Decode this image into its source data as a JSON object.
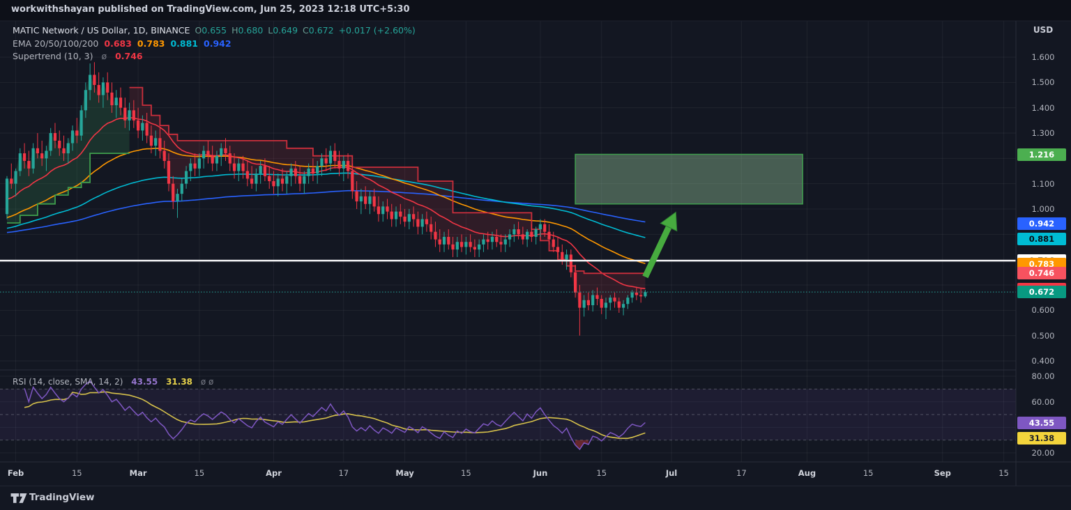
{
  "watermark": "workwithshayan published on TradingView.com, Jun 25, 2023 12:18 UTC+5:30",
  "header": {
    "symbol": "MATIC Network / US Dollar, 1D, BINANCE",
    "ohlc": [
      [
        "O",
        "0.655"
      ],
      [
        "H",
        "0.680"
      ],
      [
        "L",
        "0.649"
      ],
      [
        "C",
        "0.672"
      ]
    ],
    "change": "+0.017 (+2.60%)",
    "ema_label": "EMA 20/50/100/200",
    "ema_values": [
      {
        "text": "0.683",
        "color": "#f23645"
      },
      {
        "text": "0.783",
        "color": "#ff9800"
      },
      {
        "text": "0.881",
        "color": "#00bcd4"
      },
      {
        "text": "0.942",
        "color": "#2962ff"
      }
    ],
    "supertrend_label": "Supertrend (10, 3)",
    "supertrend_marker": "ø",
    "supertrend_value": "0.746"
  },
  "rsi_header": {
    "label": "RSI (14, close, SMA, 14, 2)",
    "rsi_value": "43.55",
    "ma_value": "31.38",
    "marker": "ø  ø"
  },
  "price_axis": {
    "unit": "USD",
    "ticks": [
      {
        "label": "1.600",
        "price": 1.6
      },
      {
        "label": "1.500",
        "price": 1.5
      },
      {
        "label": "1.400",
        "price": 1.4
      },
      {
        "label": "1.300",
        "price": 1.3
      },
      {
        "label": "1.100",
        "price": 1.1
      },
      {
        "label": "1.000",
        "price": 1.0
      },
      {
        "label": "0.600",
        "price": 0.6
      },
      {
        "label": "0.500",
        "price": 0.5
      },
      {
        "label": "0.400",
        "price": 0.4
      }
    ],
    "badges": [
      {
        "label": "1.216",
        "price": 1.216,
        "bg": "#4caf50",
        "fg": "#ffffff"
      },
      {
        "label": "0.942",
        "price": 0.942,
        "bg": "#2962ff",
        "fg": "#ffffff"
      },
      {
        "label": "0.881",
        "price": 0.881,
        "bg": "#00bcd4",
        "fg": "#0b0e15"
      },
      {
        "label": "0.796",
        "price": 0.796,
        "bg": "#ffffff",
        "fg": "#131722"
      },
      {
        "label": "0.783",
        "price": 0.783,
        "bg": "#ff9800",
        "fg": "#ffffff"
      },
      {
        "label": "0.746",
        "price": 0.746,
        "bg": "#f7525f",
        "fg": "#ffffff"
      },
      {
        "label": "0.683",
        "price": 0.683,
        "bg": "#f23645",
        "fg": "#ffffff"
      },
      {
        "label": "0.672",
        "price": 0.672,
        "bg": "#089981",
        "fg": "#ffffff"
      }
    ]
  },
  "rsi_axis": {
    "ticks": [
      {
        "label": "80.00",
        "value": 80
      },
      {
        "label": "60.00",
        "value": 60
      },
      {
        "label": "20.00",
        "value": 20
      }
    ],
    "badges": [
      {
        "label": "43.55",
        "value": 43.55,
        "bg": "#7e57c2",
        "fg": "#ffffff"
      },
      {
        "label": "31.38",
        "value": 31.38,
        "bg": "#f3d43c",
        "fg": "#1c1f2a"
      }
    ]
  },
  "time_axis": {
    "ticks": [
      {
        "label": "Feb",
        "d": 2,
        "major": true
      },
      {
        "label": "15",
        "d": 16,
        "major": false
      },
      {
        "label": "Mar",
        "d": 30,
        "major": true
      },
      {
        "label": "15",
        "d": 44,
        "major": false
      },
      {
        "label": "Apr",
        "d": 61,
        "major": true
      },
      {
        "label": "17",
        "d": 77,
        "major": false
      },
      {
        "label": "May",
        "d": 91,
        "major": true
      },
      {
        "label": "15",
        "d": 105,
        "major": false
      },
      {
        "label": "Jun",
        "d": 122,
        "major": true
      },
      {
        "label": "15",
        "d": 136,
        "major": false
      },
      {
        "label": "Jul",
        "d": 152,
        "major": true
      },
      {
        "label": "17",
        "d": 168,
        "major": false
      },
      {
        "label": "Aug",
        "d": 183,
        "major": true
      },
      {
        "label": "15",
        "d": 197,
        "major": false
      },
      {
        "label": "Sep",
        "d": 214,
        "major": true
      },
      {
        "label": "15",
        "d": 228,
        "major": false
      }
    ]
  },
  "footer": {
    "brand": "TradingView"
  },
  "colors": {
    "up": "#26a69a",
    "down": "#f23645",
    "st_up_line": "#3f9e4d",
    "st_down_line": "#cc2f3c",
    "st_up_fill": "rgba(60,160,90,0.20)",
    "st_down_fill": "rgba(200,55,70,0.16)",
    "white_line": "#f5f5f7",
    "last_price_line": "#26a69a",
    "rsi_line": "#7e57c2",
    "rsi_ma_line": "#d7c24b",
    "rsi_band_fill": "rgba(126,87,194,0.10)",
    "rsi_level_line": "#9598a1",
    "rsi_under_fill": "rgba(205,60,60,0.45)",
    "grid": "rgba(255,255,255,0.055)",
    "separator": "#2a2e39",
    "box_fill": "rgba(144,190,150,0.42)",
    "box_stroke": "#3f9e4d",
    "arrow_fill": "#47ab3f",
    "arrow_stroke": "#2f7d33"
  },
  "chart_data": {
    "type": "candlestick+indicators",
    "title": "MATIC Network / US Dollar, 1D, BINANCE",
    "start_date": "2023-01-30",
    "ylim": [
      0.4,
      1.6
    ],
    "rsi_ylim": [
      20,
      80
    ],
    "last_price": 0.672,
    "white_line_price": 0.796,
    "ema_periods": [
      20,
      50,
      100,
      200
    ],
    "ema_seeds": {
      "20": 1.03,
      "50": 0.96,
      "100": 0.92,
      "200": 0.905
    },
    "ema_colors": {
      "20": "#f23645",
      "50": "#ff9800",
      "100": "#00bcd4",
      "200": "#2962ff"
    },
    "ema_last": {
      "20": 0.683,
      "50": 0.783,
      "100": 0.881,
      "200": 0.942
    },
    "supertrend": {
      "params": [
        10,
        3
      ],
      "last": 0.746,
      "up": [
        [
          0,
          0.945
        ],
        [
          3,
          0.945
        ],
        [
          3,
          0.975
        ],
        [
          7,
          0.975
        ],
        [
          7,
          1.02
        ],
        [
          11,
          1.02
        ],
        [
          11,
          1.055
        ],
        [
          14,
          1.055
        ],
        [
          14,
          1.085
        ],
        [
          17,
          1.085
        ],
        [
          17,
          1.105
        ],
        [
          19,
          1.105
        ],
        [
          19,
          1.22
        ],
        [
          28,
          1.22
        ]
      ],
      "down": [
        [
          28,
          1.48
        ],
        [
          31,
          1.48
        ],
        [
          31,
          1.41
        ],
        [
          33,
          1.41
        ],
        [
          33,
          1.37
        ],
        [
          35,
          1.37
        ],
        [
          35,
          1.33
        ],
        [
          37,
          1.33
        ],
        [
          37,
          1.295
        ],
        [
          39,
          1.295
        ],
        [
          39,
          1.27
        ],
        [
          64,
          1.27
        ],
        [
          64,
          1.24
        ],
        [
          70,
          1.24
        ],
        [
          70,
          1.21
        ],
        [
          79,
          1.21
        ],
        [
          79,
          1.165
        ],
        [
          94,
          1.165
        ],
        [
          94,
          1.11
        ],
        [
          102,
          1.11
        ],
        [
          102,
          0.985
        ],
        [
          120,
          0.985
        ],
        [
          120,
          0.92
        ],
        [
          122,
          0.92
        ],
        [
          122,
          0.875
        ],
        [
          124,
          0.875
        ],
        [
          124,
          0.835
        ],
        [
          126,
          0.835
        ],
        [
          126,
          0.8
        ],
        [
          128,
          0.8
        ],
        [
          128,
          0.775
        ],
        [
          130,
          0.775
        ],
        [
          130,
          0.755
        ],
        [
          132,
          0.755
        ],
        [
          132,
          0.746
        ],
        [
          146,
          0.746
        ]
      ]
    },
    "rsi": {
      "period": 14,
      "ma_period": 14,
      "levels": [
        70,
        50,
        30
      ],
      "last": 43.55,
      "ma_last": 31.38
    },
    "annotations": {
      "box": {
        "d1": 130,
        "d2": 182,
        "price_top": 1.216,
        "price_bottom": 1.02
      },
      "arrow": {
        "d1": 146,
        "price1": 0.732,
        "d2": 153,
        "price2": 0.988
      }
    },
    "candles": [
      [
        0.98,
        1.13,
        0.96,
        1.12
      ],
      [
        1.12,
        1.18,
        1.08,
        1.1
      ],
      [
        1.1,
        1.16,
        1.05,
        1.15
      ],
      [
        1.15,
        1.24,
        1.13,
        1.22
      ],
      [
        1.22,
        1.26,
        1.16,
        1.19
      ],
      [
        1.19,
        1.23,
        1.13,
        1.16
      ],
      [
        1.16,
        1.26,
        1.14,
        1.24
      ],
      [
        1.24,
        1.3,
        1.2,
        1.22
      ],
      [
        1.22,
        1.27,
        1.17,
        1.2
      ],
      [
        1.2,
        1.25,
        1.15,
        1.23
      ],
      [
        1.23,
        1.32,
        1.21,
        1.3
      ],
      [
        1.3,
        1.34,
        1.24,
        1.27
      ],
      [
        1.27,
        1.31,
        1.21,
        1.24
      ],
      [
        1.24,
        1.29,
        1.19,
        1.22
      ],
      [
        1.22,
        1.28,
        1.18,
        1.26
      ],
      [
        1.26,
        1.33,
        1.23,
        1.31
      ],
      [
        1.31,
        1.36,
        1.26,
        1.29
      ],
      [
        1.29,
        1.41,
        1.27,
        1.39
      ],
      [
        1.39,
        1.5,
        1.36,
        1.47
      ],
      [
        1.47,
        1.575,
        1.43,
        1.53
      ],
      [
        1.53,
        1.58,
        1.46,
        1.49
      ],
      [
        1.49,
        1.54,
        1.42,
        1.45
      ],
      [
        1.45,
        1.52,
        1.4,
        1.5
      ],
      [
        1.5,
        1.54,
        1.43,
        1.46
      ],
      [
        1.46,
        1.5,
        1.38,
        1.41
      ],
      [
        1.41,
        1.47,
        1.36,
        1.44
      ],
      [
        1.44,
        1.48,
        1.37,
        1.4
      ],
      [
        1.4,
        1.44,
        1.32,
        1.35
      ],
      [
        1.35,
        1.42,
        1.31,
        1.39
      ],
      [
        1.39,
        1.43,
        1.32,
        1.35
      ],
      [
        1.35,
        1.4,
        1.28,
        1.31
      ],
      [
        1.31,
        1.37,
        1.27,
        1.34
      ],
      [
        1.34,
        1.38,
        1.26,
        1.29
      ],
      [
        1.29,
        1.33,
        1.22,
        1.25
      ],
      [
        1.25,
        1.31,
        1.21,
        1.28
      ],
      [
        1.28,
        1.32,
        1.2,
        1.23
      ],
      [
        1.23,
        1.27,
        1.16,
        1.19
      ],
      [
        1.19,
        1.22,
        1.07,
        1.1
      ],
      [
        1.1,
        1.13,
        1.0,
        1.03
      ],
      [
        1.03,
        1.08,
        0.965,
        1.06
      ],
      [
        1.06,
        1.12,
        1.03,
        1.1
      ],
      [
        1.1,
        1.17,
        1.08,
        1.15
      ],
      [
        1.15,
        1.2,
        1.11,
        1.18
      ],
      [
        1.18,
        1.22,
        1.13,
        1.16
      ],
      [
        1.16,
        1.22,
        1.13,
        1.2
      ],
      [
        1.2,
        1.25,
        1.16,
        1.23
      ],
      [
        1.23,
        1.27,
        1.18,
        1.21
      ],
      [
        1.21,
        1.25,
        1.15,
        1.18
      ],
      [
        1.18,
        1.23,
        1.15,
        1.21
      ],
      [
        1.21,
        1.26,
        1.17,
        1.24
      ],
      [
        1.24,
        1.28,
        1.19,
        1.22
      ],
      [
        1.22,
        1.25,
        1.15,
        1.18
      ],
      [
        1.18,
        1.22,
        1.12,
        1.15
      ],
      [
        1.15,
        1.2,
        1.11,
        1.18
      ],
      [
        1.18,
        1.21,
        1.12,
        1.15
      ],
      [
        1.15,
        1.19,
        1.09,
        1.12
      ],
      [
        1.12,
        1.17,
        1.08,
        1.1
      ],
      [
        1.1,
        1.16,
        1.07,
        1.14
      ],
      [
        1.14,
        1.19,
        1.1,
        1.17
      ],
      [
        1.17,
        1.2,
        1.11,
        1.13
      ],
      [
        1.13,
        1.17,
        1.08,
        1.11
      ],
      [
        1.11,
        1.15,
        1.06,
        1.09
      ],
      [
        1.09,
        1.14,
        1.05,
        1.12
      ],
      [
        1.12,
        1.16,
        1.07,
        1.1
      ],
      [
        1.1,
        1.15,
        1.06,
        1.13
      ],
      [
        1.13,
        1.18,
        1.09,
        1.16
      ],
      [
        1.16,
        1.19,
        1.1,
        1.13
      ],
      [
        1.13,
        1.17,
        1.07,
        1.1
      ],
      [
        1.1,
        1.15,
        1.06,
        1.13
      ],
      [
        1.13,
        1.18,
        1.1,
        1.16
      ],
      [
        1.16,
        1.2,
        1.11,
        1.14
      ],
      [
        1.14,
        1.19,
        1.1,
        1.17
      ],
      [
        1.17,
        1.22,
        1.13,
        1.2
      ],
      [
        1.2,
        1.24,
        1.15,
        1.18
      ],
      [
        1.18,
        1.25,
        1.15,
        1.23
      ],
      [
        1.23,
        1.26,
        1.16,
        1.19
      ],
      [
        1.19,
        1.23,
        1.13,
        1.16
      ],
      [
        1.16,
        1.21,
        1.11,
        1.19
      ],
      [
        1.19,
        1.22,
        1.12,
        1.15
      ],
      [
        1.15,
        1.18,
        1.04,
        1.07
      ],
      [
        1.07,
        1.11,
        1.0,
        1.03
      ],
      [
        1.03,
        1.08,
        0.98,
        1.05
      ],
      [
        1.05,
        1.09,
        1.0,
        1.02
      ],
      [
        1.02,
        1.07,
        0.98,
        1.05
      ],
      [
        1.05,
        1.08,
        0.99,
        1.01
      ],
      [
        1.01,
        1.05,
        0.95,
        0.98
      ],
      [
        0.98,
        1.03,
        0.95,
        1.01
      ],
      [
        1.01,
        1.04,
        0.96,
        0.99
      ],
      [
        0.99,
        1.02,
        0.93,
        0.96
      ],
      [
        0.96,
        1.01,
        0.93,
        0.99
      ],
      [
        0.99,
        1.02,
        0.94,
        0.97
      ],
      [
        0.97,
        1.0,
        0.93,
        0.95
      ],
      [
        0.95,
        1.0,
        0.92,
        0.98
      ],
      [
        0.98,
        1.01,
        0.93,
        0.96
      ],
      [
        0.96,
        0.99,
        0.9,
        0.93
      ],
      [
        0.93,
        0.98,
        0.9,
        0.96
      ],
      [
        0.96,
        0.99,
        0.91,
        0.94
      ],
      [
        0.94,
        0.97,
        0.88,
        0.91
      ],
      [
        0.91,
        0.95,
        0.85,
        0.88
      ],
      [
        0.88,
        0.92,
        0.83,
        0.86
      ],
      [
        0.86,
        0.91,
        0.83,
        0.89
      ],
      [
        0.89,
        0.92,
        0.84,
        0.86
      ],
      [
        0.86,
        0.89,
        0.81,
        0.84
      ],
      [
        0.84,
        0.89,
        0.81,
        0.87
      ],
      [
        0.87,
        0.9,
        0.83,
        0.85
      ],
      [
        0.85,
        0.89,
        0.82,
        0.87
      ],
      [
        0.87,
        0.9,
        0.83,
        0.85
      ],
      [
        0.85,
        0.88,
        0.81,
        0.84
      ],
      [
        0.84,
        0.88,
        0.81,
        0.86
      ],
      [
        0.86,
        0.9,
        0.83,
        0.88
      ],
      [
        0.88,
        0.91,
        0.84,
        0.87
      ],
      [
        0.87,
        0.91,
        0.84,
        0.89
      ],
      [
        0.89,
        0.92,
        0.85,
        0.87
      ],
      [
        0.87,
        0.9,
        0.83,
        0.86
      ],
      [
        0.86,
        0.9,
        0.83,
        0.88
      ],
      [
        0.88,
        0.92,
        0.85,
        0.9
      ],
      [
        0.9,
        0.94,
        0.87,
        0.92
      ],
      [
        0.92,
        0.95,
        0.88,
        0.9
      ],
      [
        0.9,
        0.93,
        0.86,
        0.88
      ],
      [
        0.88,
        0.92,
        0.85,
        0.91
      ],
      [
        0.91,
        0.94,
        0.87,
        0.89
      ],
      [
        0.89,
        0.93,
        0.86,
        0.92
      ],
      [
        0.92,
        0.96,
        0.89,
        0.94
      ],
      [
        0.94,
        0.96,
        0.89,
        0.91
      ],
      [
        0.91,
        0.94,
        0.86,
        0.88
      ],
      [
        0.88,
        0.91,
        0.83,
        0.85
      ],
      [
        0.85,
        0.89,
        0.81,
        0.83
      ],
      [
        0.83,
        0.86,
        0.78,
        0.8
      ],
      [
        0.8,
        0.84,
        0.76,
        0.82
      ],
      [
        0.82,
        0.84,
        0.73,
        0.75
      ],
      [
        0.75,
        0.78,
        0.65,
        0.67
      ],
      [
        0.67,
        0.7,
        0.5,
        0.61
      ],
      [
        0.61,
        0.66,
        0.575,
        0.64
      ],
      [
        0.64,
        0.67,
        0.6,
        0.62
      ],
      [
        0.62,
        0.68,
        0.595,
        0.66
      ],
      [
        0.66,
        0.69,
        0.62,
        0.645
      ],
      [
        0.645,
        0.66,
        0.585,
        0.61
      ],
      [
        0.61,
        0.65,
        0.565,
        0.63
      ],
      [
        0.63,
        0.66,
        0.6,
        0.65
      ],
      [
        0.65,
        0.67,
        0.61,
        0.635
      ],
      [
        0.635,
        0.65,
        0.59,
        0.61
      ],
      [
        0.61,
        0.64,
        0.58,
        0.625
      ],
      [
        0.625,
        0.66,
        0.605,
        0.65
      ],
      [
        0.65,
        0.68,
        0.63,
        0.67
      ],
      [
        0.67,
        0.69,
        0.64,
        0.66
      ],
      [
        0.66,
        0.685,
        0.63,
        0.655
      ],
      [
        0.655,
        0.68,
        0.649,
        0.672
      ]
    ]
  }
}
